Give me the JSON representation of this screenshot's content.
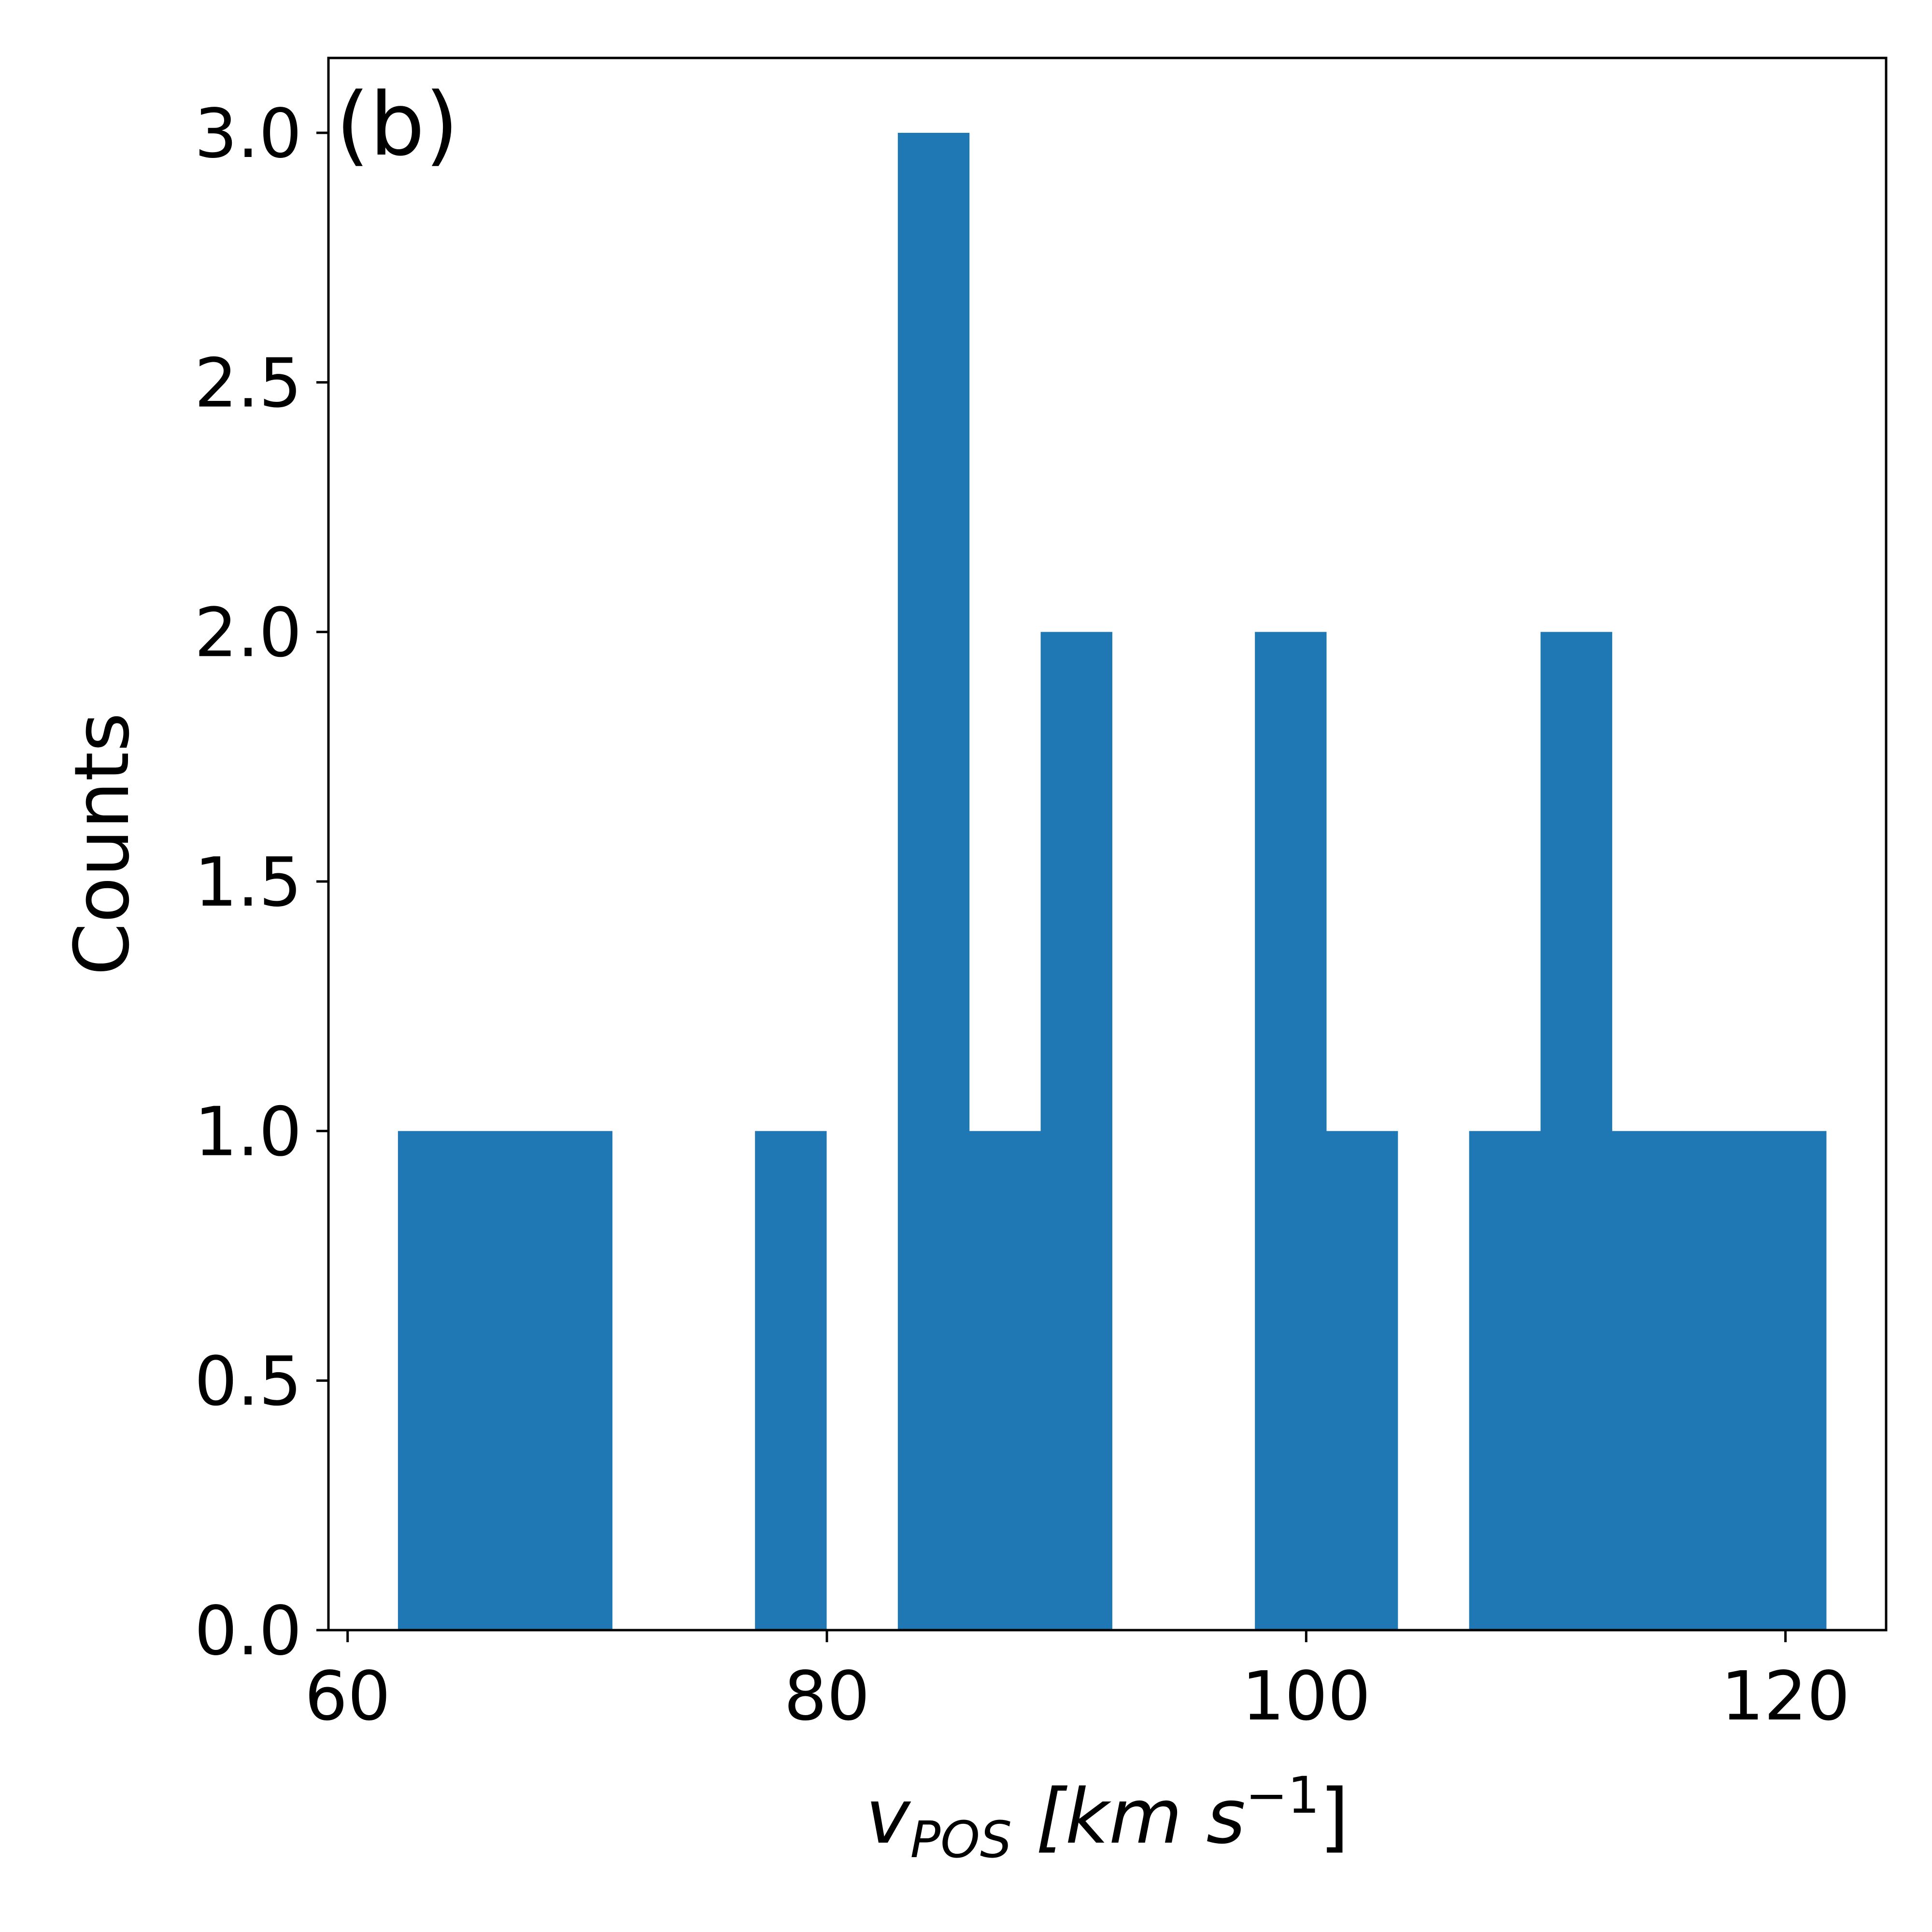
{
  "chart_data": {
    "type": "bar",
    "subtype": "histogram",
    "panel_label": "(b)",
    "title": "",
    "xlabel": "v_POS [km s^-1]",
    "xlabel_parts": {
      "main": "v",
      "subscript": "POS",
      "unit_open": " [km s",
      "superscript": "−1",
      "unit_close": "]"
    },
    "ylabel": "Counts",
    "xlim": [
      59.2,
      124.2
    ],
    "ylim": [
      0,
      3.15
    ],
    "xticks": [
      60,
      80,
      100,
      120
    ],
    "xtick_labels": [
      "60",
      "80",
      "100",
      "120"
    ],
    "yticks": [
      0.0,
      0.5,
      1.0,
      1.5,
      2.0,
      2.5,
      3.0
    ],
    "ytick_labels": [
      "0.0",
      "0.5",
      "1.0",
      "1.5",
      "2.0",
      "2.5",
      "3.0"
    ],
    "bin_edges": [
      62.1,
      65.08,
      68.06,
      71.04,
      74.02,
      77.0,
      79.98,
      82.96,
      85.94,
      88.92,
      91.9,
      94.88,
      97.86,
      100.84,
      103.82,
      106.8,
      109.78,
      112.76,
      115.74,
      118.72,
      121.7
    ],
    "values": [
      1,
      1,
      1,
      0,
      0,
      1,
      0,
      3,
      1,
      2,
      0,
      0,
      2,
      1,
      0,
      1,
      2,
      1,
      1,
      1
    ],
    "bar_color": "#1f77b4",
    "grid": false,
    "legend": "none"
  }
}
